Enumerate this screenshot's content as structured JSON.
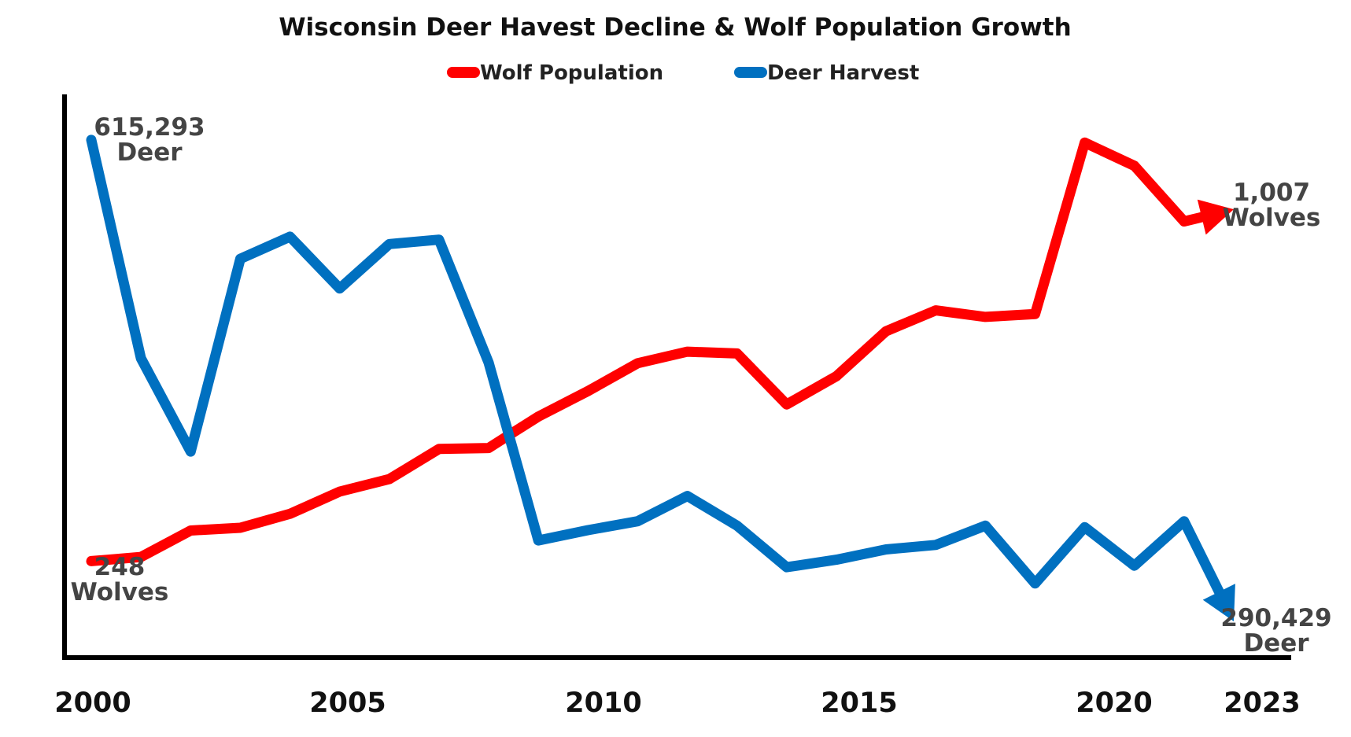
{
  "chart_data": {
    "type": "line",
    "title": "Wisconsin Deer Havest Decline & Wolf Population Growth",
    "xlabel": "",
    "ylabel": "",
    "x_ticks": [
      "2000",
      "2005",
      "2010",
      "2015",
      "2020",
      "2023"
    ],
    "legend_placement": "top-center",
    "grid": false,
    "series": [
      {
        "name": "Wolf Population",
        "color": "#ff0000",
        "axis": "wolves",
        "x": [
          2000,
          2001,
          2002,
          2003,
          2004,
          2005,
          2006,
          2007,
          2008,
          2009,
          2010,
          2011,
          2012,
          2013,
          2014,
          2015,
          2016,
          2017,
          2018,
          2019,
          2020,
          2021,
          2022,
          2023
        ],
        "values": [
          248,
          257,
          314,
          320,
          350,
          398,
          425,
          490,
          492,
          560,
          615,
          675,
          700,
          696,
          586,
          647,
          744,
          789,
          775,
          781,
          1151,
          1101,
          981,
          1007
        ]
      },
      {
        "name": "Deer Harvest",
        "color": "#0070c0",
        "axis": "deer",
        "x": [
          2000,
          2001,
          2002,
          2003,
          2004,
          2005,
          2006,
          2007,
          2008,
          2009,
          2010,
          2011,
          2012,
          2013,
          2014,
          2015,
          2016,
          2017,
          2018,
          2019,
          2020,
          2021,
          2022,
          2023
        ],
        "values": [
          615293,
          468000,
          405000,
          535000,
          550000,
          515000,
          545000,
          548000,
          465000,
          345000,
          352000,
          358000,
          375000,
          355000,
          327000,
          332000,
          339000,
          342000,
          355000,
          316000,
          354000,
          328000,
          358000,
          290429
        ]
      }
    ],
    "axes": {
      "wolves": {
        "min": 40,
        "max": 1255
      },
      "deer": {
        "min": 266000,
        "max": 646000
      }
    },
    "annotations": [
      {
        "lines": [
          "615,293",
          "Deer"
        ]
      },
      {
        "lines": [
          "248",
          "Wolves"
        ]
      },
      {
        "lines": [
          "1,007",
          "Wolves"
        ]
      },
      {
        "lines": [
          "290,429",
          "Deer"
        ]
      }
    ]
  }
}
